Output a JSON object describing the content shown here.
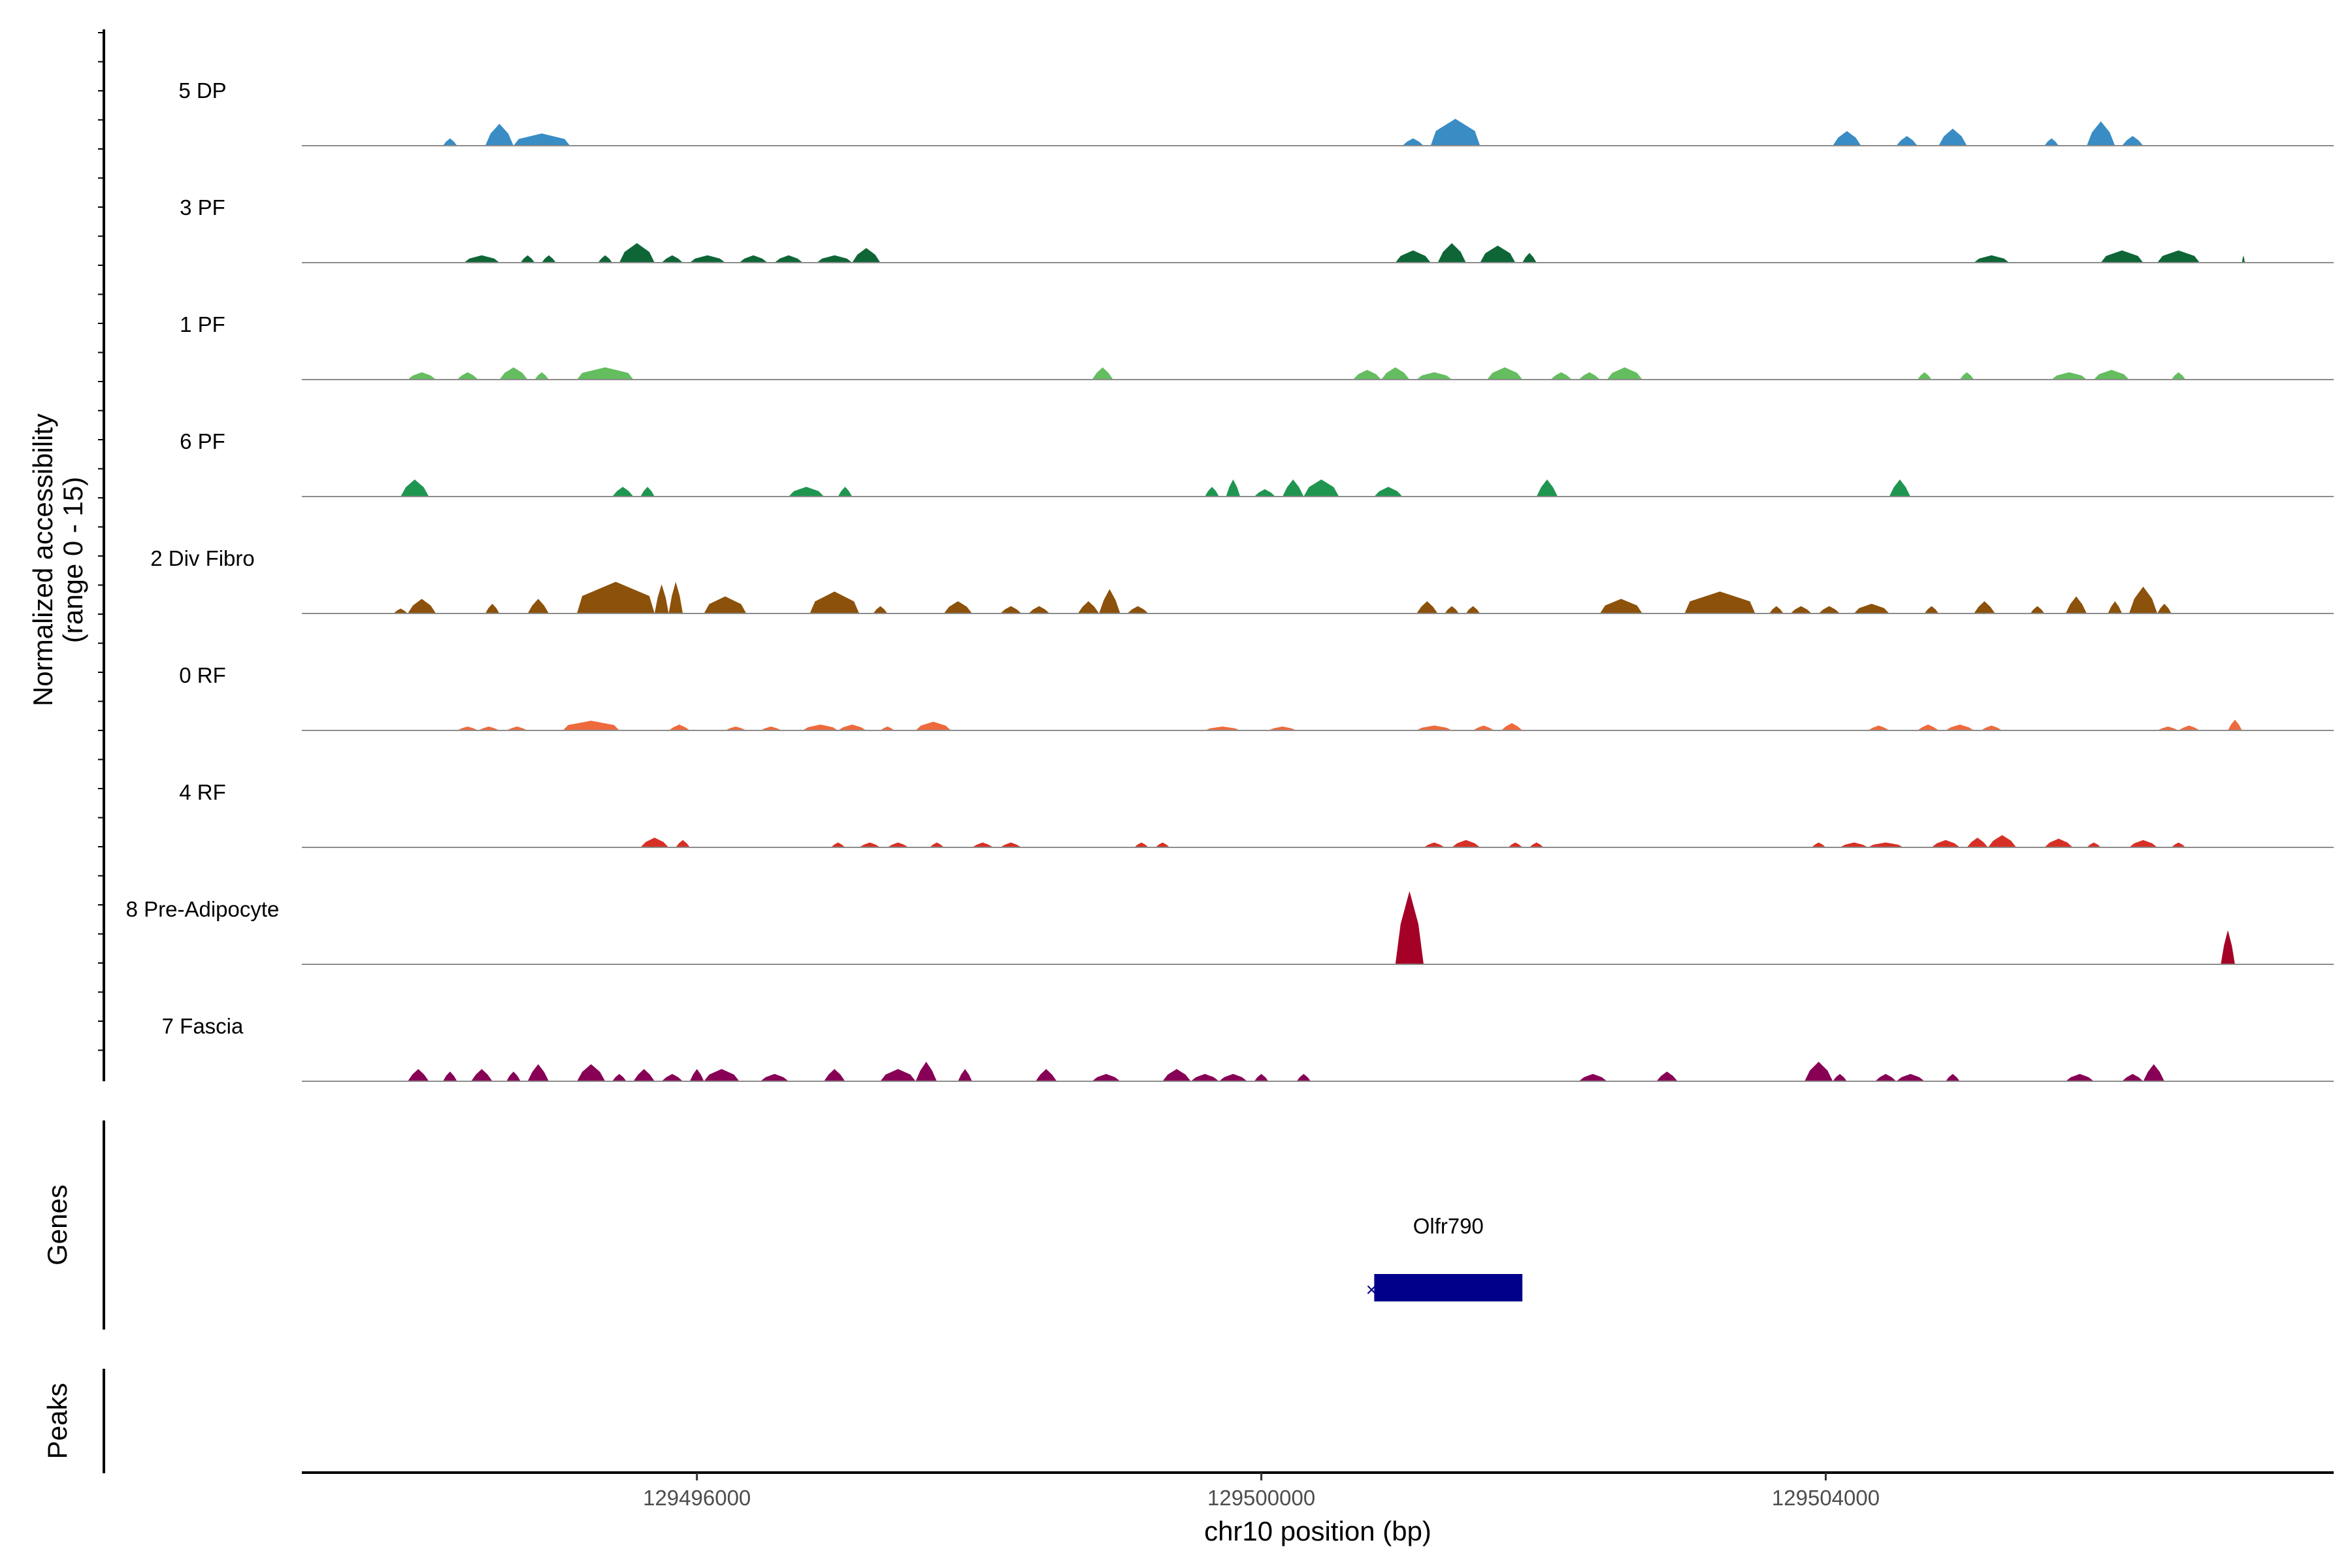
{
  "chart_data": {
    "type": "area",
    "title": "",
    "ylabel_line1": "Normalized accessibility",
    "ylabel_line2": "(range 0 - 15)",
    "yrange": [
      0,
      15
    ],
    "xlabel": "chr10 position (bp)",
    "xlim": [
      129493200,
      129507600
    ],
    "x_ticks": [
      129496000,
      129500000,
      129504000
    ],
    "x_tick_labels": [
      "129496000",
      "129500000",
      "129504000"
    ],
    "tracks": [
      {
        "name": "5 DP",
        "color": "#3a8cc4",
        "peaks": [
          [
            129494200,
            129494300,
            1.5
          ],
          [
            129494500,
            129494700,
            4.5
          ],
          [
            129494700,
            129495100,
            2.5
          ],
          [
            129501000,
            129501150,
            1.5
          ],
          [
            129501200,
            129501550,
            5.5
          ],
          [
            129504050,
            129504250,
            3.0
          ],
          [
            129504500,
            129504650,
            2.0
          ],
          [
            129504800,
            129505000,
            3.5
          ],
          [
            129505550,
            129505650,
            1.5
          ],
          [
            129505850,
            129506050,
            5.0
          ],
          [
            129506100,
            129506250,
            2.0
          ]
        ]
      },
      {
        "name": "3 PF",
        "color": "#0e6637",
        "peaks": [
          [
            129494350,
            129494600,
            1.5
          ],
          [
            129494750,
            129494850,
            1.5
          ],
          [
            129494900,
            129495000,
            1.5
          ],
          [
            129495300,
            129495400,
            1.5
          ],
          [
            129495450,
            129495700,
            4.0
          ],
          [
            129495750,
            129495900,
            1.5
          ],
          [
            129495950,
            129496200,
            1.5
          ],
          [
            129496300,
            129496500,
            1.5
          ],
          [
            129496550,
            129496750,
            1.5
          ],
          [
            129496850,
            129497100,
            1.5
          ],
          [
            129497100,
            129497300,
            3.0
          ],
          [
            129500950,
            129501200,
            2.5
          ],
          [
            129501250,
            129501450,
            4.0
          ],
          [
            129501550,
            129501800,
            3.5
          ],
          [
            129501850,
            129501950,
            2.0
          ],
          [
            129505050,
            129505300,
            1.5
          ],
          [
            129505950,
            129506250,
            2.5
          ],
          [
            129506350,
            129506650,
            2.5
          ],
          [
            129506950,
            129506970,
            1.5
          ]
        ]
      },
      {
        "name": "1 PF",
        "color": "#64bd5f",
        "peaks": [
          [
            129493950,
            129494150,
            1.5
          ],
          [
            129494300,
            129494450,
            1.5
          ],
          [
            129494600,
            129494800,
            2.5
          ],
          [
            129494850,
            129494950,
            1.5
          ],
          [
            129495150,
            129495550,
            2.5
          ],
          [
            129498800,
            129498950,
            2.5
          ],
          [
            129500650,
            129500850,
            2.0
          ],
          [
            129500850,
            129501050,
            2.5
          ],
          [
            129501100,
            129501350,
            1.5
          ],
          [
            129501600,
            129501850,
            2.5
          ],
          [
            129502050,
            129502200,
            1.5
          ],
          [
            129502250,
            129502400,
            1.5
          ],
          [
            129502450,
            129502700,
            2.5
          ],
          [
            129504650,
            129504750,
            1.5
          ],
          [
            129504950,
            129505050,
            1.5
          ],
          [
            129505600,
            129505850,
            1.5
          ],
          [
            129505900,
            129506150,
            2.0
          ],
          [
            129506450,
            129506550,
            1.5
          ]
        ]
      },
      {
        "name": "6 PF",
        "color": "#1f9650",
        "peaks": [
          [
            129493900,
            129494100,
            3.5
          ],
          [
            129495400,
            129495550,
            2.0
          ],
          [
            129495600,
            129495700,
            2.0
          ],
          [
            129496650,
            129496900,
            2.0
          ],
          [
            129497000,
            129497100,
            2.0
          ],
          [
            129499600,
            129499700,
            2.0
          ],
          [
            129499750,
            129499850,
            3.5
          ],
          [
            129499950,
            129500100,
            1.5
          ],
          [
            129500150,
            129500300,
            3.5
          ],
          [
            129500300,
            129500550,
            3.5
          ],
          [
            129500800,
            129501000,
            2.0
          ],
          [
            129501950,
            129502100,
            3.5
          ],
          [
            129504450,
            129504600,
            3.5
          ]
        ]
      },
      {
        "name": "2 Div Fibro",
        "color": "#8c510a",
        "peaks": [
          [
            129493850,
            129493950,
            1.0
          ],
          [
            129493950,
            129494150,
            3.0
          ],
          [
            129494500,
            129494600,
            2.0
          ],
          [
            129494800,
            129494950,
            3.0
          ],
          [
            129495150,
            129495700,
            6.5
          ],
          [
            129495700,
            129495800,
            6.0
          ],
          [
            129495800,
            129495900,
            6.5
          ],
          [
            129496050,
            129496350,
            3.5
          ],
          [
            129496800,
            129497150,
            4.5
          ],
          [
            129497250,
            129497350,
            1.5
          ],
          [
            129497750,
            129497950,
            2.5
          ],
          [
            129498150,
            129498300,
            1.5
          ],
          [
            129498350,
            129498500,
            1.5
          ],
          [
            129498700,
            129498850,
            2.5
          ],
          [
            129498850,
            129499000,
            5.0
          ],
          [
            129499050,
            129499200,
            1.5
          ],
          [
            129501100,
            129501250,
            2.5
          ],
          [
            129501300,
            129501400,
            1.5
          ],
          [
            129501450,
            129501550,
            1.5
          ],
          [
            129502400,
            129502700,
            3.0
          ],
          [
            129503000,
            129503500,
            4.5
          ],
          [
            129503600,
            129503700,
            1.5
          ],
          [
            129503750,
            129503900,
            1.5
          ],
          [
            129503950,
            129504100,
            1.5
          ],
          [
            129504200,
            129504450,
            2.0
          ],
          [
            129504700,
            129504800,
            1.5
          ],
          [
            129505050,
            129505200,
            2.5
          ],
          [
            129505450,
            129505550,
            1.5
          ],
          [
            129505700,
            129505850,
            3.5
          ],
          [
            129506000,
            129506100,
            2.5
          ],
          [
            129506150,
            129506350,
            5.5
          ],
          [
            129506350,
            129506450,
            2.0
          ]
        ]
      },
      {
        "name": "0 RF",
        "color": "#ee6a3c",
        "peaks": [
          [
            129494300,
            129494450,
            0.8
          ],
          [
            129494450,
            129494600,
            0.8
          ],
          [
            129494650,
            129494800,
            0.8
          ],
          [
            129495050,
            129495450,
            2.0
          ],
          [
            129495800,
            129495950,
            1.2
          ],
          [
            129496200,
            129496350,
            0.8
          ],
          [
            129496450,
            129496600,
            0.8
          ],
          [
            129496750,
            129497000,
            1.2
          ],
          [
            129497000,
            129497200,
            1.2
          ],
          [
            129497300,
            129497400,
            0.8
          ],
          [
            129497550,
            129497800,
            1.8
          ],
          [
            129499600,
            129499850,
            0.8
          ],
          [
            129500050,
            129500250,
            0.8
          ],
          [
            129501100,
            129501350,
            1.0
          ],
          [
            129501500,
            129501650,
            1.0
          ],
          [
            129501700,
            129501850,
            1.5
          ],
          [
            129504300,
            129504450,
            1.0
          ],
          [
            129504650,
            129504800,
            1.2
          ],
          [
            129504850,
            129505050,
            1.2
          ],
          [
            129505100,
            129505250,
            1.0
          ],
          [
            129506350,
            129506500,
            0.8
          ],
          [
            129506500,
            129506650,
            1.0
          ],
          [
            129506850,
            129506950,
            2.2
          ]
        ]
      },
      {
        "name": "4 RF",
        "color": "#d63026",
        "peaks": [
          [
            129495600,
            129495800,
            2.0
          ],
          [
            129495850,
            129495950,
            1.5
          ],
          [
            129496950,
            129497050,
            1.0
          ],
          [
            129497150,
            129497300,
            1.0
          ],
          [
            129497350,
            129497500,
            1.0
          ],
          [
            129497650,
            129497750,
            1.0
          ],
          [
            129497950,
            129498100,
            1.0
          ],
          [
            129498150,
            129498300,
            1.0
          ],
          [
            129499100,
            129499200,
            1.0
          ],
          [
            129499250,
            129499350,
            1.0
          ],
          [
            129501150,
            129501300,
            1.0
          ],
          [
            129501350,
            129501550,
            1.5
          ],
          [
            129501750,
            129501850,
            1.0
          ],
          [
            129501900,
            129502000,
            1.0
          ],
          [
            129503900,
            129504000,
            1.0
          ],
          [
            129504100,
            129504300,
            1.0
          ],
          [
            129504300,
            129504550,
            1.0
          ],
          [
            129504750,
            129504950,
            1.5
          ],
          [
            129505000,
            129505150,
            2.0
          ],
          [
            129505150,
            129505350,
            2.5
          ],
          [
            129505550,
            129505750,
            1.8
          ],
          [
            129505850,
            129505950,
            1.0
          ],
          [
            129506150,
            129506350,
            1.5
          ],
          [
            129506450,
            129506550,
            1.0
          ]
        ]
      },
      {
        "name": "8 Pre-Adipocyte",
        "color": "#a50026",
        "peaks": [
          [
            129500950,
            129501150,
            15.0
          ],
          [
            129506800,
            129506900,
            7.0
          ]
        ]
      },
      {
        "name": "7 Fascia",
        "color": "#870056",
        "peaks": [
          [
            129493950,
            129494100,
            2.5
          ],
          [
            129494200,
            129494300,
            2.0
          ],
          [
            129494400,
            129494550,
            2.5
          ],
          [
            129494650,
            129494750,
            2.0
          ],
          [
            129494800,
            129494950,
            3.5
          ],
          [
            129495150,
            129495350,
            3.5
          ],
          [
            129495400,
            129495500,
            1.5
          ],
          [
            129495550,
            129495700,
            2.5
          ],
          [
            129495750,
            129495900,
            1.5
          ],
          [
            129495950,
            129496050,
            2.5
          ],
          [
            129496050,
            129496300,
            2.5
          ],
          [
            129496450,
            129496650,
            1.5
          ],
          [
            129496900,
            129497050,
            2.5
          ],
          [
            129497300,
            129497550,
            2.5
          ],
          [
            129497550,
            129497700,
            4.0
          ],
          [
            129497850,
            129497950,
            2.5
          ],
          [
            129498400,
            129498550,
            2.5
          ],
          [
            129498800,
            129499000,
            1.5
          ],
          [
            129499300,
            129499500,
            2.5
          ],
          [
            129499500,
            129499700,
            1.5
          ],
          [
            129499700,
            129499900,
            1.5
          ],
          [
            129499950,
            129500050,
            1.5
          ],
          [
            129500250,
            129500350,
            1.5
          ],
          [
            129502250,
            129502450,
            1.5
          ],
          [
            129502800,
            129502950,
            2.0
          ],
          [
            129503850,
            129504050,
            4.0
          ],
          [
            129504050,
            129504150,
            1.5
          ],
          [
            129504350,
            129504500,
            1.5
          ],
          [
            129504500,
            129504700,
            1.5
          ],
          [
            129504850,
            129504950,
            1.5
          ],
          [
            129505700,
            129505900,
            1.5
          ],
          [
            129506100,
            129506250,
            1.5
          ],
          [
            129506250,
            129506400,
            3.5
          ]
        ]
      }
    ],
    "genes_label": "Genes",
    "genes": [
      {
        "name": "Olfr790",
        "start": 129500800,
        "end": 129501850,
        "strand": "-",
        "color": "#00008b"
      }
    ],
    "peaks_label": "Peaks",
    "peaks_track": []
  }
}
